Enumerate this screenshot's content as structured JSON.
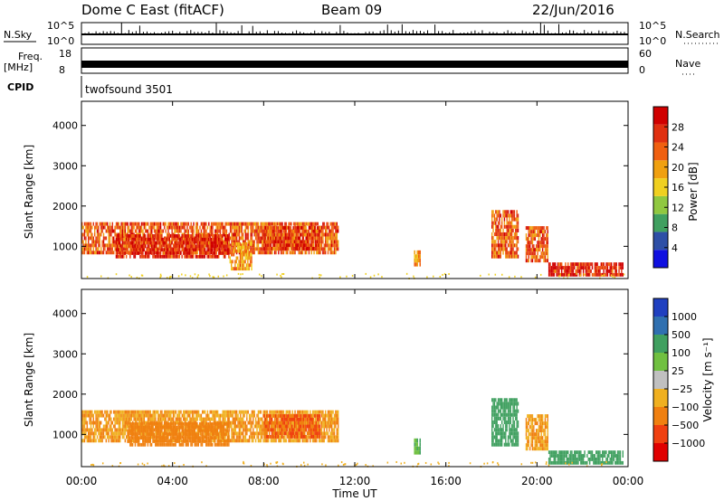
{
  "header": {
    "station": "Dome C East (fitACF)",
    "beam": "Beam 09",
    "date": "22/Jun/2016"
  },
  "strips": {
    "nsky_label": "N.Sky",
    "nsky_ticks": [
      "10^5",
      "10^0"
    ],
    "nsearch_label": "N.Search",
    "nsearch_ticks": [
      "10^5",
      "10^0"
    ],
    "freq_label": "Freq.",
    "freq_unit": "[MHz]",
    "freq_ticks": [
      "18",
      "8"
    ],
    "nave_label": "Nave",
    "nave_ticks": [
      "60",
      "0"
    ],
    "cpid_label": "CPID",
    "cpid_value": "twofsound 3501"
  },
  "colors": {
    "power_bins": [
      "#1010e0",
      "#2e4fa6",
      "#40a060",
      "#90c840",
      "#f0d020",
      "#f0a010",
      "#f06010",
      "#e03010",
      "#d00000"
    ],
    "velocity_bins": [
      "#2040c0",
      "#3070b0",
      "#40a060",
      "#70c040",
      "#c0c0c0",
      "#f0b020",
      "#f08010",
      "#f04010",
      "#e00000"
    ]
  },
  "chart_data": [
    {
      "type": "heatmap",
      "name": "power",
      "ylabel": "Slant Range [km]",
      "ylim": [
        200,
        4600
      ],
      "yticks": [
        "1000",
        "2000",
        "3000",
        "4000"
      ],
      "colorbar_label": "Power [dB]",
      "colorbar_ticks": [
        "4",
        "8",
        "12",
        "16",
        "20",
        "24",
        "28"
      ],
      "colorbar_range": [
        0,
        32
      ],
      "xlim": [
        0,
        24
      ],
      "regions": [
        {
          "t0": 0.0,
          "t1": 11.3,
          "r0": 800,
          "r1": 1600,
          "v": 24
        },
        {
          "t0": 1.5,
          "t1": 6.5,
          "r0": 700,
          "r1": 1300,
          "v": 28
        },
        {
          "t0": 6.5,
          "t1": 7.5,
          "r0": 400,
          "r1": 1100,
          "v": 20
        },
        {
          "t0": 8.0,
          "t1": 10.5,
          "r0": 900,
          "r1": 1500,
          "v": 26
        },
        {
          "t0": 14.6,
          "t1": 14.9,
          "r0": 500,
          "r1": 900,
          "v": 20
        },
        {
          "t0": 18.0,
          "t1": 19.2,
          "r0": 700,
          "r1": 1900,
          "v": 24
        },
        {
          "t0": 19.5,
          "t1": 20.5,
          "r0": 600,
          "r1": 1500,
          "v": 24
        },
        {
          "t0": 20.5,
          "t1": 23.8,
          "r0": 250,
          "r1": 600,
          "v": 28
        }
      ]
    },
    {
      "type": "heatmap",
      "name": "velocity",
      "ylabel": "Slant Range [km]",
      "ylim": [
        200,
        4600
      ],
      "yticks": [
        "1000",
        "2000",
        "3000",
        "4000"
      ],
      "colorbar_label": "Velocity [m s⁻¹]",
      "colorbar_ticks": [
        "1000",
        "500",
        "100",
        "25",
        "−25",
        "−100",
        "−500",
        "−1000"
      ],
      "xlabel": "Time UT",
      "xticks": [
        "00:00",
        "04:00",
        "08:00",
        "12:00",
        "16:00",
        "20:00",
        "00:00"
      ],
      "xlim": [
        0,
        24
      ],
      "regions": [
        {
          "t0": 0.0,
          "t1": 11.3,
          "r0": 800,
          "r1": 1600,
          "v": -100
        },
        {
          "t0": 2.0,
          "t1": 6.5,
          "r0": 700,
          "r1": 1300,
          "v": -200
        },
        {
          "t0": 8.0,
          "t1": 10.5,
          "r0": 900,
          "r1": 1500,
          "v": -500
        },
        {
          "t0": 14.6,
          "t1": 14.9,
          "r0": 500,
          "r1": 900,
          "v": 100
        },
        {
          "t0": 18.0,
          "t1": 19.2,
          "r0": 700,
          "r1": 1900,
          "v": 300
        },
        {
          "t0": 19.5,
          "t1": 20.5,
          "r0": 600,
          "r1": 1500,
          "v": -100
        },
        {
          "t0": 20.5,
          "t1": 23.8,
          "r0": 250,
          "r1": 600,
          "v": 200
        }
      ]
    }
  ]
}
